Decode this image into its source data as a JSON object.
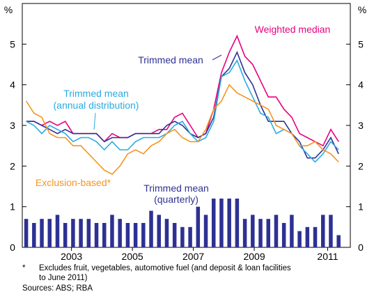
{
  "chart_data": {
    "type": "line",
    "y_unit": "%",
    "ylim": [
      0,
      6
    ],
    "yticks": [
      0,
      1,
      2,
      3,
      4,
      5
    ],
    "xlim": [
      -0.5,
      41.5
    ],
    "xticks": [
      {
        "value": 5.8,
        "label": "2003"
      },
      {
        "value": 13.6,
        "label": "2005"
      },
      {
        "value": 21.4,
        "label": "2007"
      },
      {
        "value": 29.2,
        "label": "2009"
      },
      {
        "value": 38.6,
        "label": "2011"
      }
    ],
    "series": [
      {
        "name": "Weighted median",
        "color": "#e6007e",
        "values": [
          3.1,
          3.1,
          3.0,
          3.1,
          3.0,
          3.1,
          2.8,
          2.8,
          2.8,
          2.8,
          2.6,
          2.8,
          2.7,
          2.7,
          2.8,
          2.8,
          2.8,
          2.9,
          2.9,
          3.2,
          3.3,
          3.0,
          2.7,
          2.8,
          3.4,
          4.3,
          4.8,
          5.2,
          4.7,
          4.5,
          4.1,
          3.7,
          3.7,
          3.4,
          3.2,
          2.8,
          2.7,
          2.6,
          2.5,
          2.9,
          2.6
        ]
      },
      {
        "name": "Trimmed mean",
        "color": "#2e3192",
        "values": [
          3.1,
          3.1,
          3.0,
          2.9,
          2.8,
          2.9,
          2.8,
          2.8,
          2.8,
          2.8,
          2.6,
          2.7,
          2.7,
          2.7,
          2.8,
          2.8,
          2.8,
          2.8,
          3.0,
          3.1,
          3.0,
          2.8,
          2.7,
          2.8,
          3.2,
          4.2,
          4.4,
          4.8,
          4.3,
          4.0,
          3.5,
          3.1,
          3.1,
          3.1,
          2.8,
          2.6,
          2.2,
          2.2,
          2.4,
          2.7,
          2.3
        ]
      },
      {
        "name": "Trimmed mean",
        "note": "(annual distribution)",
        "color": "#29abe2",
        "values": [
          3.1,
          3.0,
          2.8,
          3.0,
          2.9,
          2.8,
          2.6,
          2.7,
          2.7,
          2.6,
          2.4,
          2.6,
          2.4,
          2.4,
          2.6,
          2.7,
          2.7,
          2.7,
          2.8,
          3.0,
          3.1,
          2.8,
          2.6,
          2.7,
          3.1,
          4.2,
          4.3,
          4.6,
          4.1,
          3.7,
          3.3,
          3.2,
          2.8,
          2.9,
          2.8,
          2.5,
          2.3,
          2.1,
          2.3,
          2.6,
          2.4
        ]
      },
      {
        "name": "Exclusion-based*",
        "color": "#f7941d",
        "values": [
          3.6,
          3.3,
          3.2,
          2.8,
          2.7,
          2.7,
          2.5,
          2.5,
          2.3,
          2.1,
          1.9,
          1.8,
          2.0,
          2.3,
          2.4,
          2.3,
          2.5,
          2.6,
          2.8,
          2.9,
          2.7,
          2.6,
          2.6,
          2.9,
          3.4,
          3.6,
          4.0,
          3.8,
          3.7,
          3.6,
          3.5,
          3.4,
          3.0,
          2.9,
          2.8,
          2.5,
          2.5,
          2.6,
          2.4,
          2.3,
          2.1
        ]
      }
    ],
    "bar_series": {
      "name": "Trimmed mean",
      "note": "(quarterly)",
      "color": "#2e3192",
      "values": [
        0.7,
        0.6,
        0.7,
        0.7,
        0.8,
        0.6,
        0.7,
        0.7,
        0.7,
        0.6,
        0.6,
        0.8,
        0.7,
        0.6,
        0.6,
        0.6,
        0.9,
        0.8,
        0.7,
        0.6,
        0.5,
        0.5,
        1.0,
        0.8,
        1.2,
        1.2,
        1.2,
        1.2,
        0.7,
        0.8,
        0.7,
        0.7,
        0.8,
        0.6,
        0.8,
        0.4,
        0.5,
        0.5,
        0.8,
        0.8,
        0.3
      ]
    },
    "footnote": {
      "marker": "*",
      "lines": [
        "Excludes fruit, vegetables, automotive fuel (and deposit & loan facilities",
        "to June 2011)"
      ]
    },
    "source": "Sources: ABS; RBA"
  }
}
